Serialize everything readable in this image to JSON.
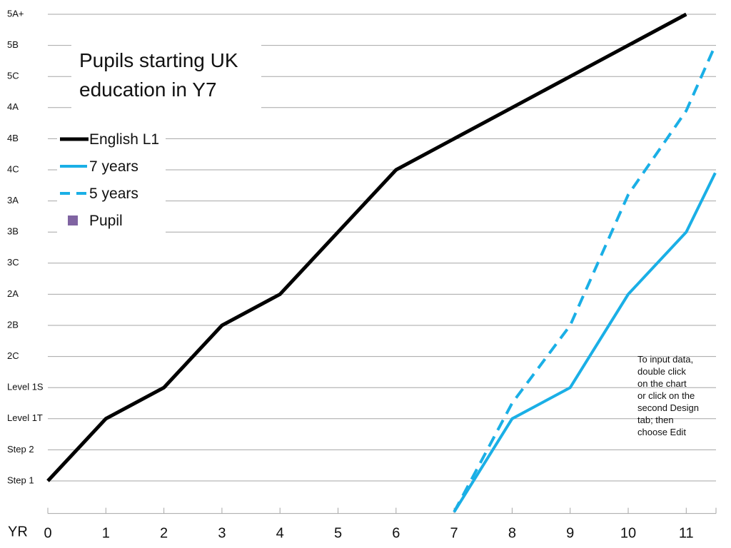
{
  "chart_data": {
    "type": "line",
    "title": "Pupils starting UK education in Y7",
    "title_lines": [
      "Pupils starting UK",
      "education in Y7"
    ],
    "xlabel": "YR",
    "x_ticks": [
      "0",
      "1",
      "2",
      "3",
      "4",
      "5",
      "6",
      "7",
      "8",
      "9",
      "10",
      "11"
    ],
    "xlim": [
      0,
      11.5
    ],
    "y_levels": [
      "Step 1",
      "Step 2",
      "Level 1T",
      "Level 1S",
      "2C",
      "2B",
      "2A",
      "3C",
      "3B",
      "3A",
      "4C",
      "4B",
      "4A",
      "5C",
      "5B",
      "5A+"
    ],
    "ylim": [
      -1,
      15
    ],
    "grid": true,
    "legend_position": "top-left",
    "series": [
      {
        "name": "English L1",
        "color": "#000000",
        "style": "solid",
        "x": [
          0,
          1,
          2,
          3,
          4,
          5,
          6,
          7,
          8,
          9,
          10,
          11
        ],
        "y": [
          0,
          2,
          3,
          5,
          6,
          8,
          10,
          11,
          12,
          13,
          14,
          15
        ]
      },
      {
        "name": "7 years",
        "color": "#1aafe6",
        "style": "solid",
        "x": [
          7,
          8,
          9,
          10,
          11,
          11.5
        ],
        "y": [
          -1,
          2,
          3,
          6,
          8,
          9.9
        ]
      },
      {
        "name": "5 years",
        "color": "#1aafe6",
        "style": "dashed",
        "x": [
          7,
          8,
          9,
          10,
          11,
          11.5
        ],
        "y": [
          -1,
          2.5,
          5,
          9.2,
          11.9,
          14
        ]
      },
      {
        "name": "Pupil",
        "color": "#8064a2",
        "style": "marker",
        "x": [],
        "y": []
      }
    ],
    "annotation": [
      "To input data,",
      "double click",
      "on the chart",
      "or click on the",
      "second Design",
      "tab; then",
      "choose Edit"
    ]
  }
}
